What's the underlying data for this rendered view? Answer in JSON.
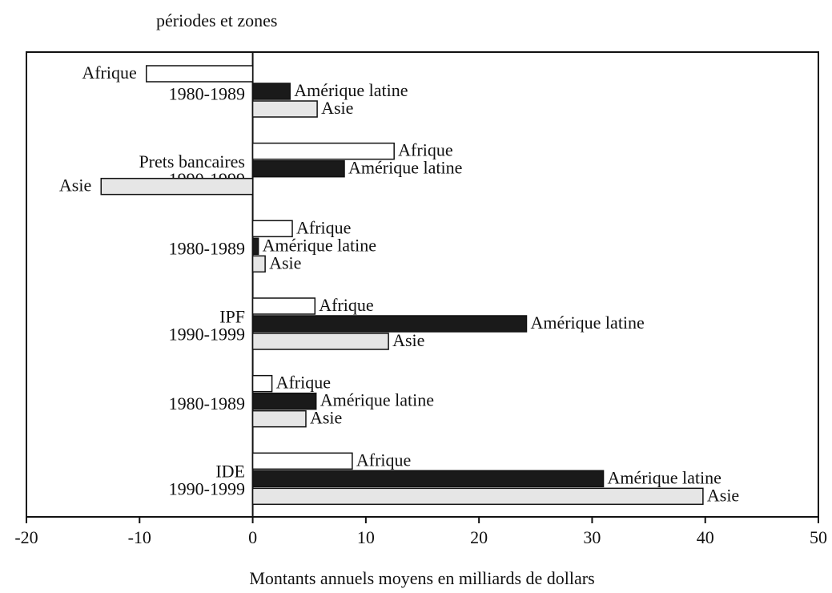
{
  "chart_data": {
    "type": "hbar",
    "ylabel": "périodes et zones",
    "xlabel": "Montants annuels moyens en milliards de dollars",
    "categories": [
      [
        "1980-1989"
      ],
      [
        "Prets bancaires",
        "1990-1999"
      ],
      [
        "1980-1989"
      ],
      [
        "IPF",
        "1990-1999"
      ],
      [
        "1980-1989"
      ],
      [
        "IDE",
        "1990-1999"
      ]
    ],
    "series": [
      {
        "name": "Afrique",
        "color": "#ffffff",
        "values": [
          -9.4,
          12.5,
          3.5,
          5.5,
          1.7,
          8.8
        ]
      },
      {
        "name": "Amérique latine",
        "color": "#1a1a1a",
        "values": [
          3.3,
          8.1,
          0.5,
          24.2,
          5.6,
          31.0
        ]
      },
      {
        "name": "Asie",
        "color": "#e6e6e6",
        "values": [
          5.7,
          -13.4,
          1.1,
          12.0,
          4.7,
          39.8
        ]
      }
    ],
    "xlim": [
      -20,
      50
    ],
    "xticks": [
      -20,
      -10,
      0,
      10,
      20,
      30,
      40,
      50
    ]
  }
}
